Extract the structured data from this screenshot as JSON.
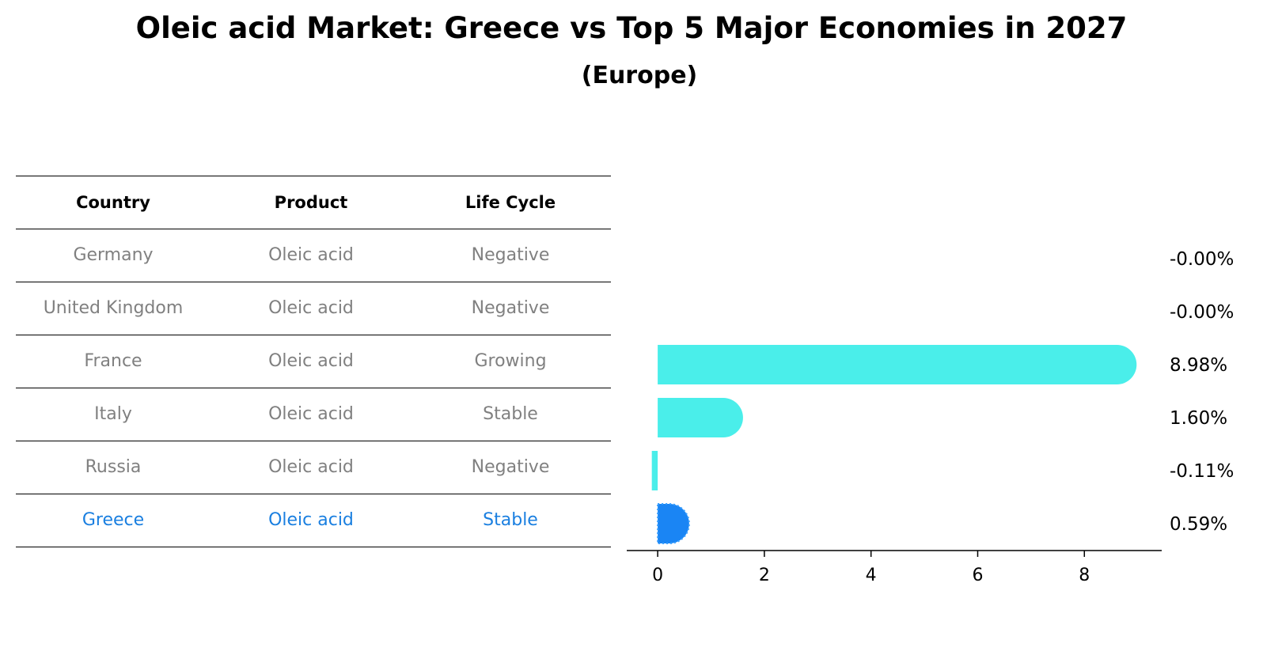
{
  "title": "Oleic acid Market: Greece vs Top 5 Major Economies in 2027",
  "subtitle": "(Europe)",
  "table": {
    "headers": [
      "Country",
      "Product",
      "Life Cycle"
    ],
    "rows": [
      [
        "Germany",
        "Oleic acid",
        "Negative"
      ],
      [
        "United Kingdom",
        "Oleic acid",
        "Negative"
      ],
      [
        "France",
        "Oleic acid",
        "Growing"
      ],
      [
        "Italy",
        "Oleic acid",
        "Stable"
      ],
      [
        "Russia",
        "Oleic acid",
        "Negative"
      ],
      [
        "Greece",
        "Oleic acid",
        "Stable"
      ]
    ],
    "highlight_row": 5,
    "colors": {
      "text": "#808080",
      "highlight": "#1a7fe0",
      "header": "#000000"
    }
  },
  "chart_data": {
    "type": "bar",
    "orientation": "horizontal",
    "categories": [
      "Germany",
      "United Kingdom",
      "France",
      "Italy",
      "Russia",
      "Greece"
    ],
    "values": [
      -0.001,
      -0.001,
      8.98,
      1.6,
      -0.11,
      0.59
    ],
    "data_labels": [
      "-0.00%",
      "-0.00%",
      "8.98%",
      "1.60%",
      "-0.11%",
      "0.59%"
    ],
    "xlim": [
      -0.58,
      9.45
    ],
    "xticks": [
      0,
      2,
      4,
      6,
      8
    ],
    "xtick_labels": [
      "0",
      "2",
      "4",
      "6",
      "8"
    ],
    "bar_colors": [
      "#4aeeea",
      "#4aeeea",
      "#4aeeea",
      "#4aeeea",
      "#4aeeea",
      "#1a85f4"
    ],
    "highlight_index": 5,
    "grid": false
  }
}
